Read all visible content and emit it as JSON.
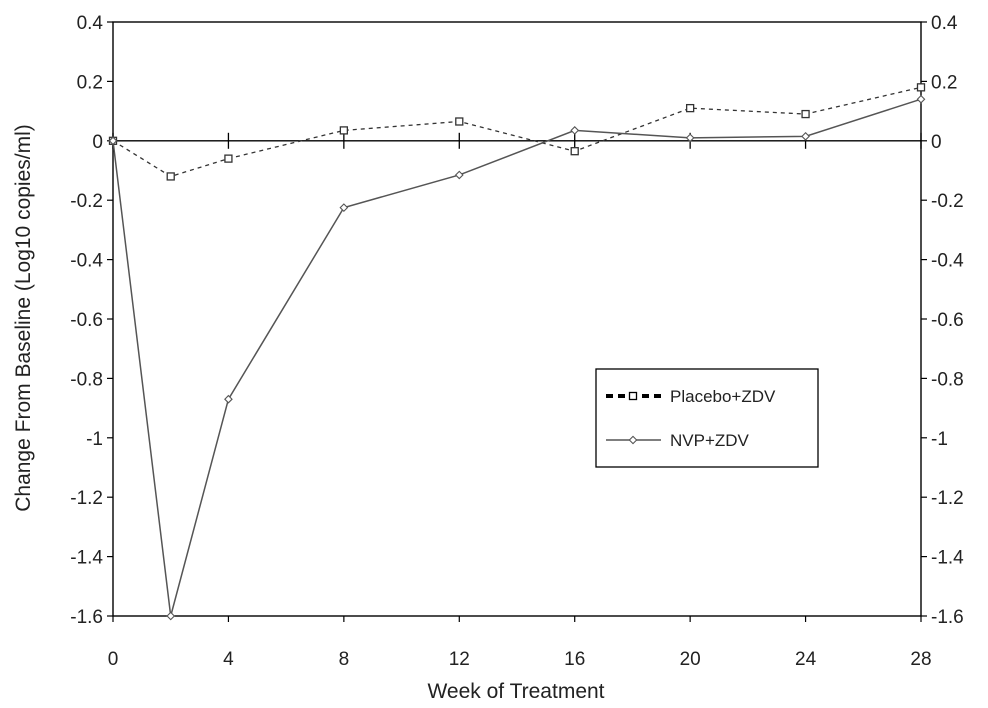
{
  "chart_data": {
    "type": "line",
    "xlabel": "Week of Treatment",
    "ylabel": "Change From Baseline (Log10 copies/ml)",
    "xlim": [
      0,
      28
    ],
    "ylim": [
      -1.6,
      0.4
    ],
    "x_ticks": [
      "0",
      "4",
      "8",
      "12",
      "16",
      "20",
      "24",
      "28"
    ],
    "y_ticks": [
      "0.4",
      "0.2",
      "0",
      "-0.2",
      "-0.4",
      "-0.6",
      "-0.8",
      "-1",
      "-1.2",
      "-1.4",
      "-1.6"
    ],
    "right_axis_mirror": true,
    "grid": false,
    "legend_position": "right",
    "series": [
      {
        "name": "Placebo+ZDV",
        "style": "dashed",
        "marker": "square",
        "color": "#333333",
        "x": [
          0,
          2,
          4,
          8,
          12,
          16,
          20,
          24,
          28
        ],
        "y": [
          0,
          -0.12,
          -0.06,
          0.035,
          0.065,
          -0.035,
          0.11,
          0.09,
          0.18
        ]
      },
      {
        "name": "NVP+ZDV",
        "style": "solid",
        "marker": "diamond",
        "color": "#555555",
        "x": [
          0,
          2,
          4,
          8,
          12,
          16,
          20,
          24,
          28
        ],
        "y": [
          0,
          -1.6,
          -0.87,
          -0.225,
          -0.115,
          0.035,
          0.01,
          0.015,
          0.14
        ]
      }
    ]
  }
}
